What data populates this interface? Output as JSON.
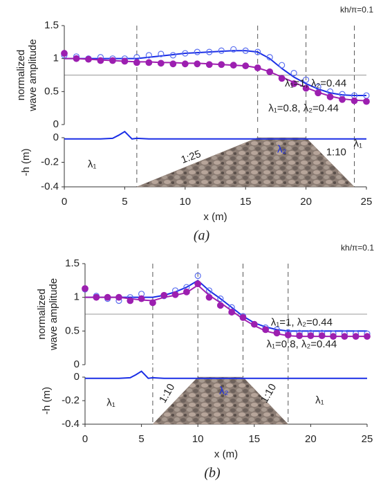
{
  "chart_data": [
    {
      "type": "line",
      "annotation": "kh/π=0.1",
      "ylabel": [
        "normalized",
        "wave amplitude"
      ],
      "xlim": [
        0,
        25
      ],
      "ylim": [
        0,
        1.5
      ],
      "yticks": [
        0,
        0.5,
        1,
        1.5
      ],
      "hline": 0.75,
      "vlines": [
        6,
        16,
        20,
        24
      ],
      "x": [
        0,
        1,
        2,
        3,
        4,
        5,
        6,
        7,
        8,
        9,
        10,
        11,
        12,
        13,
        14,
        15,
        16,
        17,
        18,
        19,
        20,
        21,
        22,
        23,
        24,
        25
      ],
      "series": [
        {
          "style": "line",
          "color": "#1a2ee6",
          "values": [
            1.0,
            1.0,
            1.0,
            1.0,
            1.0,
            1.0,
            1.0,
            1.02,
            1.04,
            1.06,
            1.08,
            1.09,
            1.1,
            1.11,
            1.12,
            1.12,
            1.1,
            1.0,
            0.85,
            0.72,
            0.62,
            0.54,
            0.48,
            0.45,
            0.44,
            0.44
          ]
        },
        {
          "style": "open",
          "color": "#5a6ef0",
          "values": [
            1.05,
            1.03,
            1.0,
            1.02,
            1.0,
            1.0,
            1.02,
            1.05,
            1.07,
            1.05,
            1.08,
            1.1,
            1.1,
            1.12,
            1.14,
            1.12,
            1.1,
            1.02,
            0.9,
            0.78,
            0.68,
            0.57,
            0.5,
            0.46,
            0.44,
            0.44
          ]
        },
        {
          "style": "line",
          "color": "#a020b0",
          "values": [
            1.0,
            1.0,
            0.99,
            0.98,
            0.97,
            0.96,
            0.95,
            0.95,
            0.94,
            0.94,
            0.93,
            0.93,
            0.92,
            0.91,
            0.9,
            0.89,
            0.86,
            0.8,
            0.72,
            0.64,
            0.56,
            0.49,
            0.43,
            0.39,
            0.37,
            0.36
          ]
        },
        {
          "style": "filled",
          "color": "#9c1fb0",
          "values": [
            1.08,
            1.0,
            0.99,
            0.97,
            0.97,
            0.96,
            0.94,
            0.94,
            0.93,
            0.92,
            0.92,
            0.92,
            0.91,
            0.91,
            0.9,
            0.89,
            0.86,
            0.8,
            0.7,
            0.62,
            0.55,
            0.48,
            0.42,
            0.38,
            0.36,
            0.35
          ]
        }
      ],
      "annotations": [
        "λ₁=1, λ₂=0.44",
        "λ₁=0.8, λ₂=0.44"
      ]
    },
    {
      "type": "line",
      "ylabel": "-h (m)",
      "xlabel": "x (m)",
      "caption": "(a)",
      "xlim": [
        0,
        25
      ],
      "xticks": [
        0,
        5,
        10,
        15,
        20,
        25
      ],
      "ylim": [
        -0.4,
        0
      ],
      "yticks": [
        -0.4,
        -0.2,
        0
      ],
      "series": [
        {
          "style": "fill",
          "color": "#8a7a70",
          "x": [
            6,
            16,
            20,
            24
          ],
          "values": [
            -0.4,
            0,
            0,
            -0.4
          ]
        },
        {
          "style": "line",
          "color": "#1a2ee6",
          "x": [
            0,
            3,
            4,
            4.5,
            5,
            5.3,
            5.6,
            6,
            7,
            25
          ],
          "values": [
            -0.01,
            -0.01,
            -0.005,
            0.02,
            0.05,
            0.02,
            -0.01,
            -0.005,
            -0.01,
            -0.01
          ]
        }
      ],
      "annotations": [
        "λ₁",
        "1:25",
        "λ₂",
        "1:10",
        "λ₁"
      ]
    },
    {
      "type": "line",
      "annotation": "kh/π=0.1",
      "ylabel": [
        "normalized",
        "wave amplitude"
      ],
      "xlim": [
        0,
        25
      ],
      "ylim": [
        0,
        1.5
      ],
      "yticks": [
        0,
        0.5,
        1,
        1.5
      ],
      "hline": 0.75,
      "vlines": [
        6,
        10,
        14,
        18
      ],
      "x": [
        0,
        1,
        2,
        3,
        4,
        5,
        6,
        7,
        8,
        9,
        10,
        11,
        12,
        13,
        14,
        15,
        16,
        17,
        18,
        19,
        20,
        21,
        22,
        23,
        24,
        25
      ],
      "series": [
        {
          "style": "line",
          "color": "#1a2ee6",
          "values": [
            1.0,
            1.0,
            1.0,
            1.0,
            1.0,
            1.0,
            1.0,
            1.03,
            1.08,
            1.15,
            1.25,
            1.1,
            0.98,
            0.85,
            0.72,
            0.62,
            0.56,
            0.52,
            0.5,
            0.5,
            0.5,
            0.5,
            0.5,
            0.5,
            0.5,
            0.5
          ]
        },
        {
          "style": "open",
          "color": "#5a6ef0",
          "values": [
            1.12,
            1.02,
            0.98,
            0.95,
            1.0,
            1.05,
            0.92,
            1.02,
            1.1,
            1.15,
            1.32,
            1.1,
            0.98,
            0.85,
            0.72,
            0.6,
            0.55,
            0.52,
            0.48,
            0.47,
            0.47,
            0.47,
            0.46,
            0.46,
            0.46,
            0.46
          ]
        },
        {
          "style": "line",
          "color": "#a020b0",
          "values": [
            1.0,
            1.0,
            1.0,
            1.0,
            0.98,
            0.96,
            0.95,
            1.0,
            1.03,
            1.07,
            1.18,
            1.03,
            0.92,
            0.8,
            0.68,
            0.58,
            0.5,
            0.46,
            0.43,
            0.42,
            0.42,
            0.42,
            0.42,
            0.42,
            0.42,
            0.42
          ]
        },
        {
          "style": "filled",
          "color": "#9c1fb0",
          "values": [
            1.13,
            1.0,
            1.0,
            1.0,
            0.95,
            0.98,
            0.92,
            1.03,
            1.04,
            1.08,
            1.2,
            1.0,
            0.88,
            0.78,
            0.7,
            0.6,
            0.52,
            0.47,
            0.44,
            0.43,
            0.43,
            0.43,
            0.42,
            0.42,
            0.42,
            0.42
          ]
        }
      ],
      "annotations": [
        "λ₁=1, λ₂=0.44",
        "λ₁=0.8, λ₂=0.44"
      ]
    },
    {
      "type": "line",
      "ylabel": "-h (m)",
      "xlabel": "x (m)",
      "caption": "(b)",
      "xlim": [
        0,
        25
      ],
      "xticks": [
        0,
        5,
        10,
        15,
        20,
        25
      ],
      "ylim": [
        -0.4,
        0
      ],
      "yticks": [
        -0.4,
        -0.2,
        0
      ],
      "series": [
        {
          "style": "fill",
          "color": "#8a7a70",
          "x": [
            6,
            10,
            14,
            18
          ],
          "values": [
            -0.4,
            0,
            0,
            -0.4
          ]
        },
        {
          "style": "line",
          "color": "#1a2ee6",
          "x": [
            0,
            3,
            4,
            4.5,
            5,
            5.3,
            5.6,
            6,
            7,
            25
          ],
          "values": [
            -0.01,
            -0.01,
            -0.005,
            0.02,
            0.05,
            0.02,
            -0.01,
            -0.005,
            -0.01,
            -0.01
          ]
        }
      ],
      "annotations": [
        "λ₁",
        "1:10",
        "λ₂",
        "1:10",
        "λ₁"
      ]
    }
  ]
}
